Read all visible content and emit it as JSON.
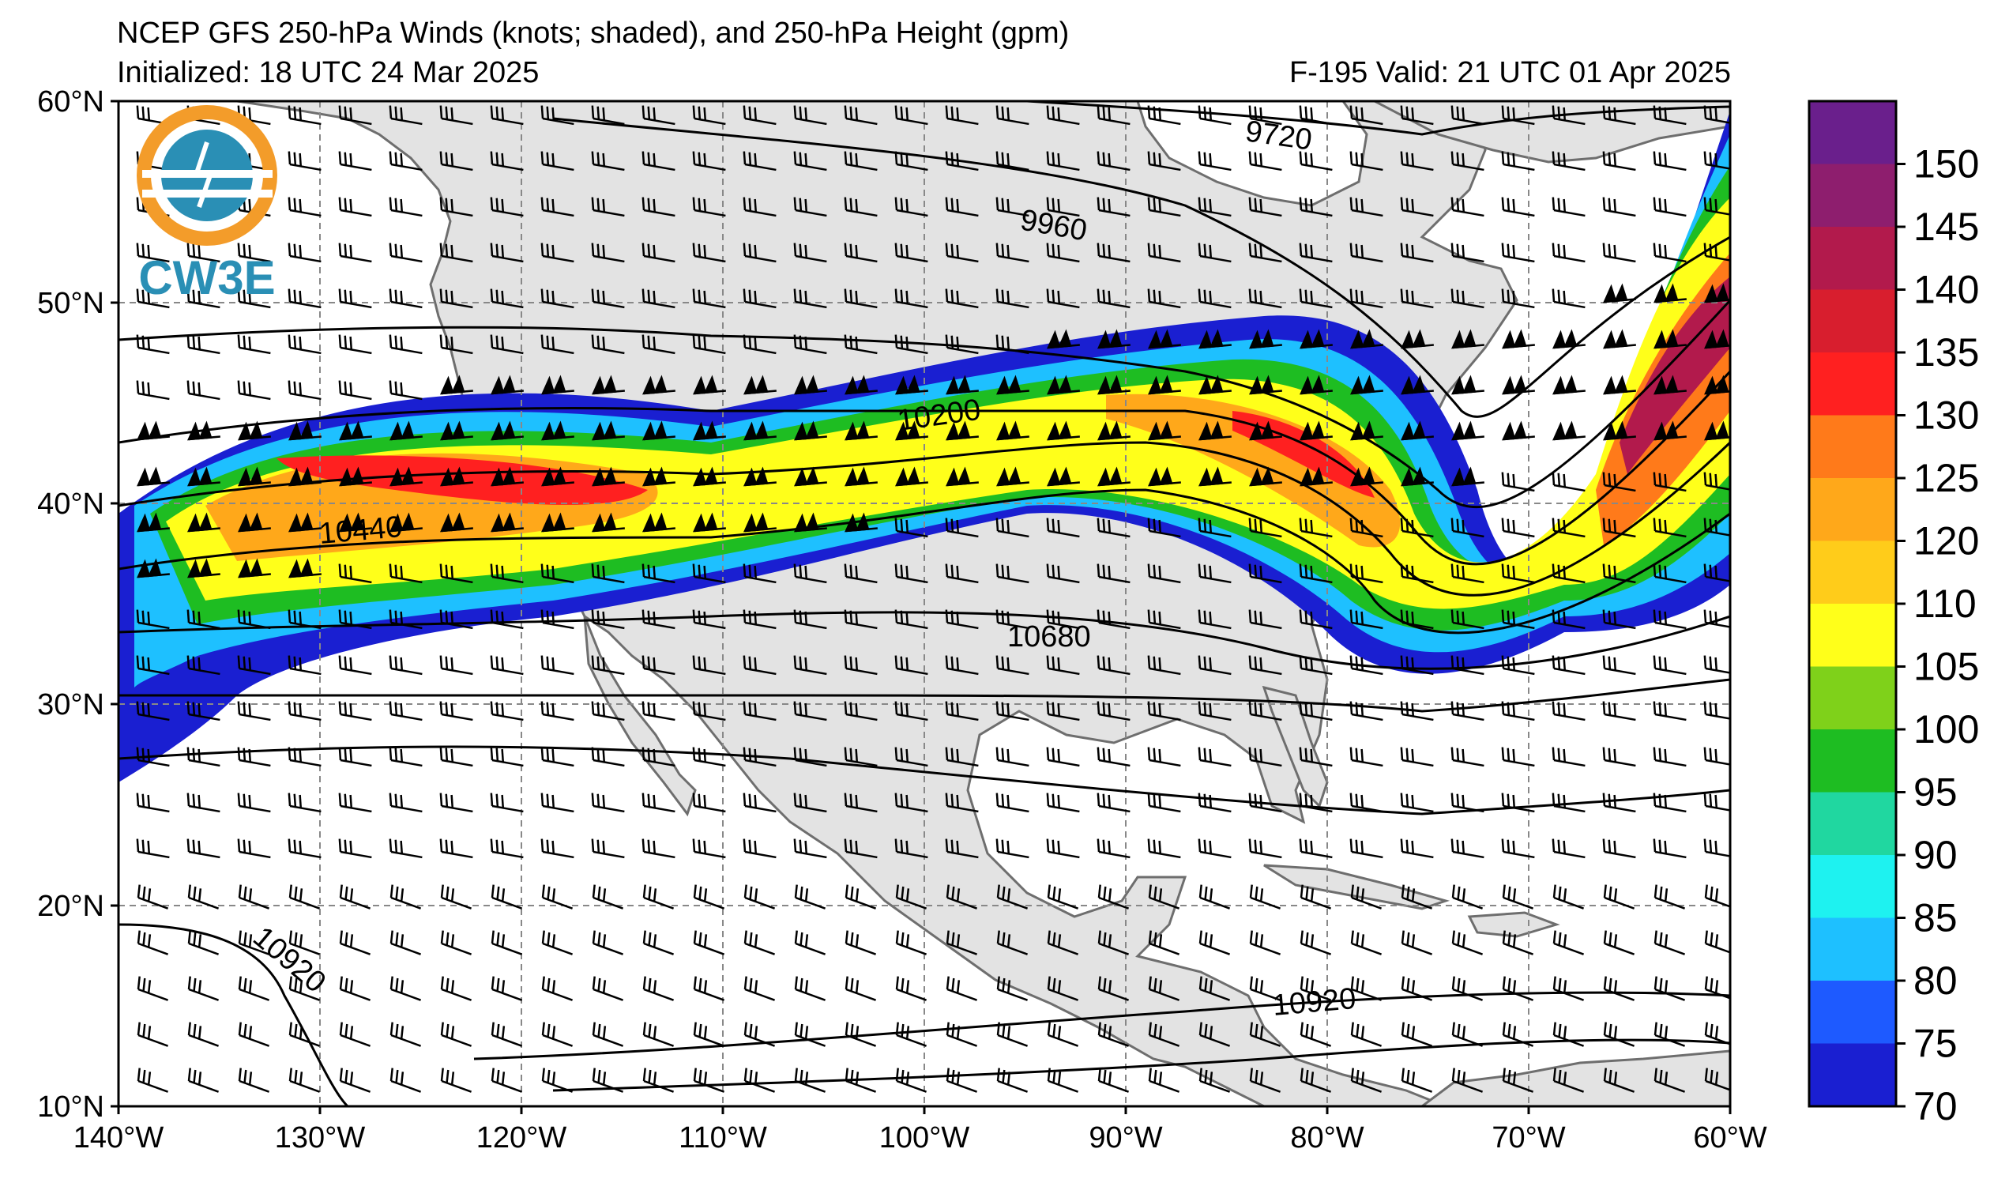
{
  "header": {
    "title_line1": "NCEP GFS 250-hPa Winds (knots; shaded), and 250-hPa Height (gpm)",
    "title_line2": "Initialized: 18 UTC 24 Mar 2025",
    "forecast": "F-195  Valid: 21 UTC 01 Apr 2025"
  },
  "logo": {
    "text": "CW3E",
    "icon": "cw3e-logo-icon"
  },
  "axes": {
    "lat_labels": [
      "60°N",
      "50°N",
      "40°N",
      "30°N",
      "20°N",
      "10°N"
    ],
    "lon_labels": [
      "140°W",
      "130°W",
      "120°W",
      "110°W",
      "100°W",
      "90°W",
      "80°W",
      "70°W",
      "60°W"
    ],
    "lat_range": [
      10,
      60
    ],
    "lon_range": [
      -140,
      -60
    ]
  },
  "colorbar": {
    "labels": [
      "150",
      "145",
      "140",
      "135",
      "130",
      "125",
      "120",
      "110",
      "105",
      "100",
      "95",
      "90",
      "85",
      "80",
      "75",
      "70"
    ],
    "colors": [
      "#6a1f8c",
      "#8e1e6e",
      "#b21a4c",
      "#d81e2e",
      "#ff2020",
      "#ff7a1a",
      "#ffa81a",
      "#ffcc1a",
      "#ffff1a",
      "#7fd11a",
      "#1ebd22",
      "#20d7a0",
      "#1ef2f0",
      "#1ec0ff",
      "#1e5aff",
      "#1a1fd1"
    ]
  },
  "contour_labels": [
    "9720",
    "9960",
    "10200",
    "10440",
    "10680",
    "10920",
    "10920"
  ]
}
